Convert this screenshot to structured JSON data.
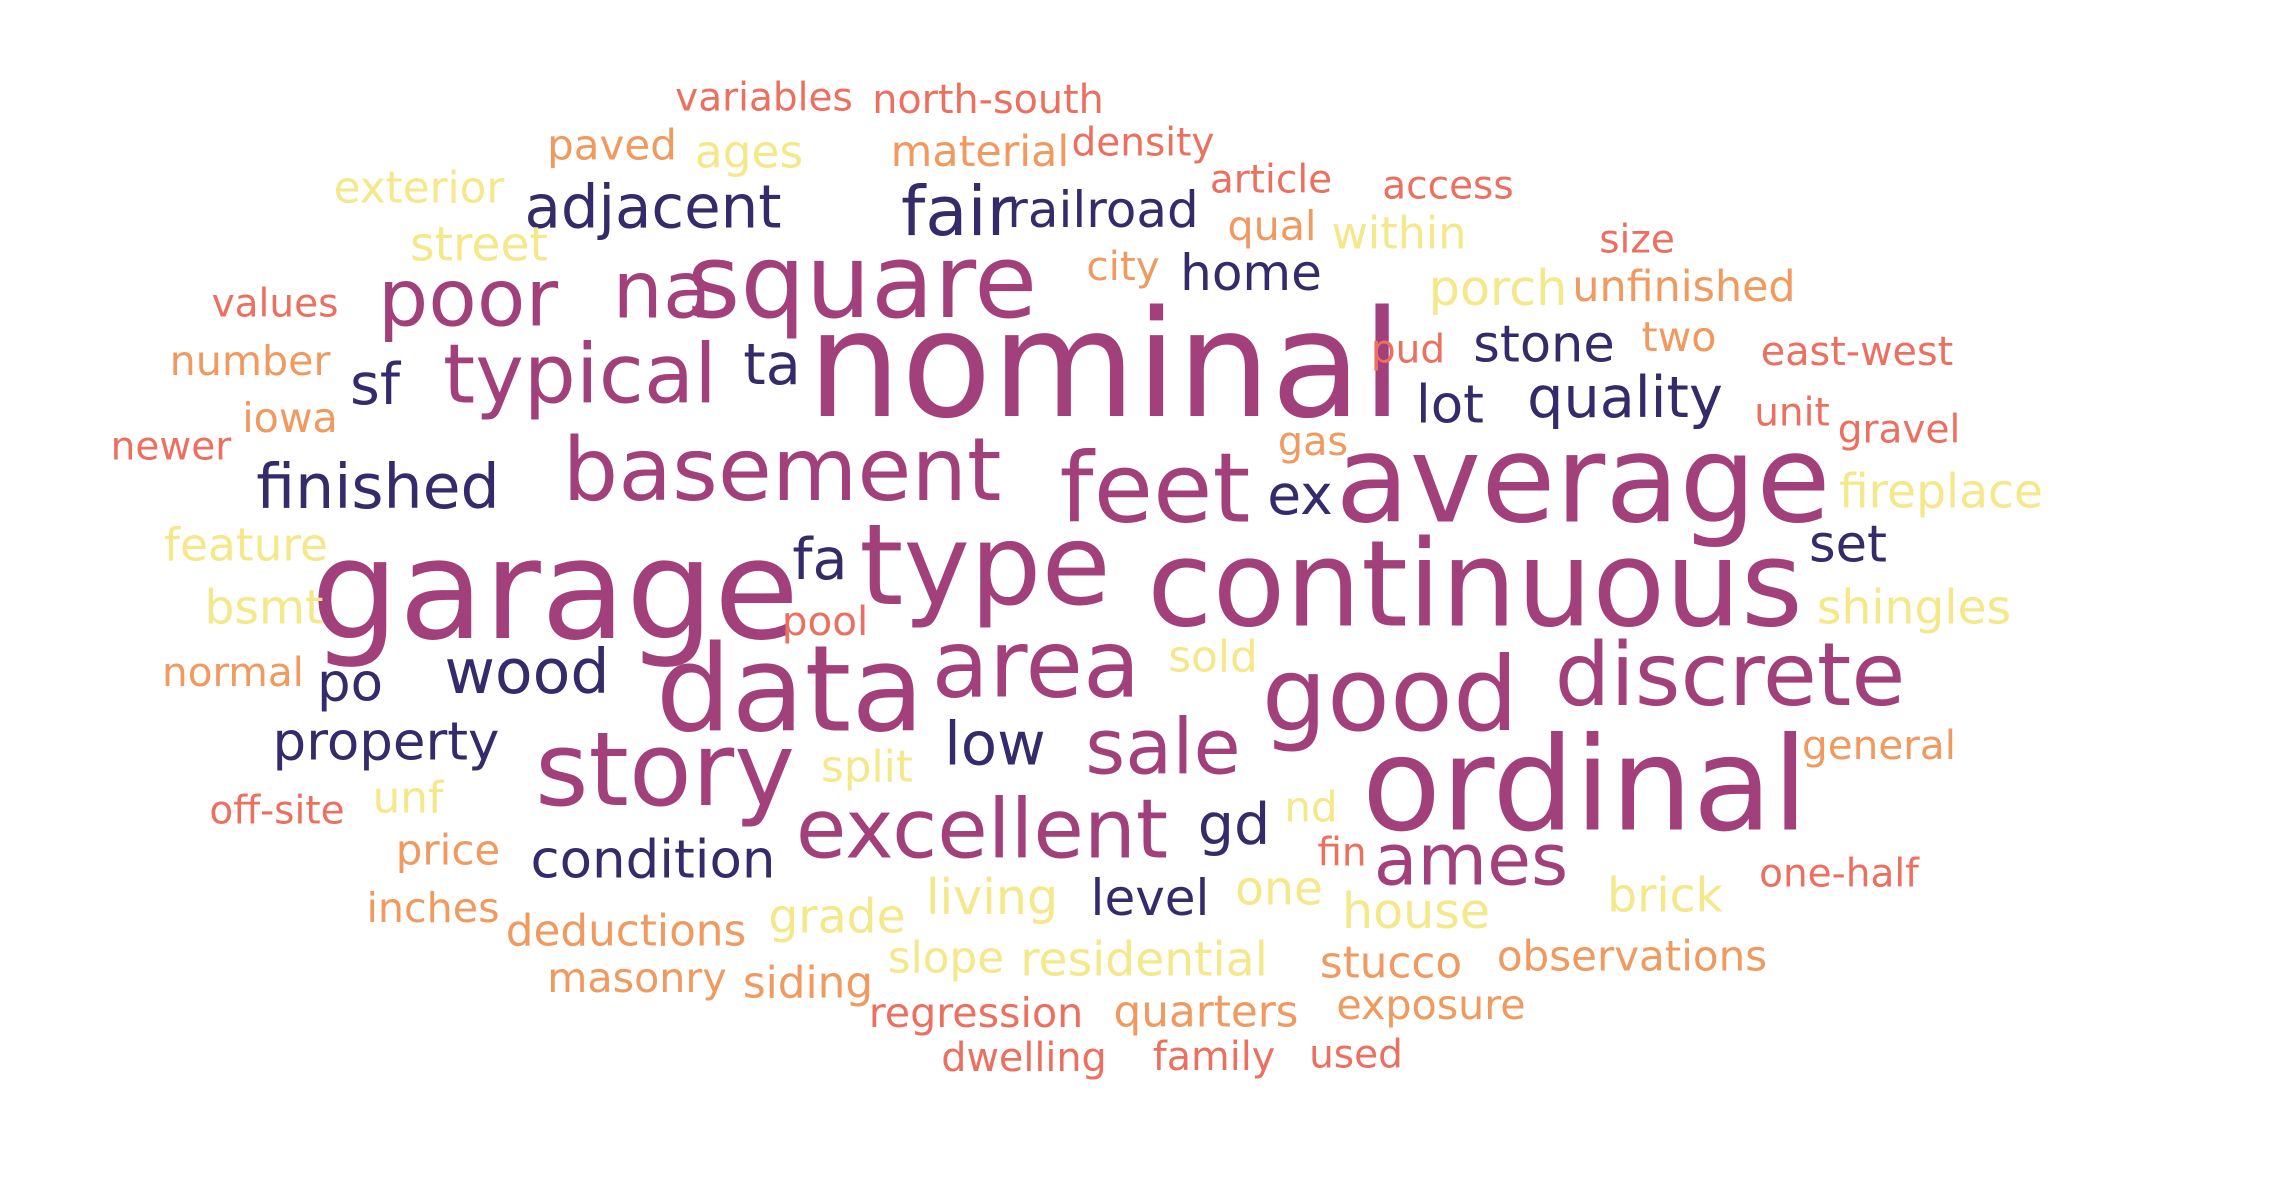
{
  "palette": {
    "c1": "#352a6a",
    "c2": "#a2407c",
    "c3": "#f4e88a",
    "c4": "#f09a60",
    "c5": "#ec7060"
  },
  "words": [
    {
      "text": "nominal",
      "color": "c2",
      "weight": 1.0
    },
    {
      "text": "garage",
      "color": "c2",
      "weight": 0.95
    },
    {
      "text": "average",
      "color": "c2",
      "weight": 0.85
    },
    {
      "text": "continuous",
      "color": "c2",
      "weight": 0.84
    },
    {
      "text": "ordinal",
      "color": "c2",
      "weight": 0.9
    },
    {
      "text": "data",
      "color": "c2",
      "weight": 0.84
    },
    {
      "text": "type",
      "color": "c2",
      "weight": 0.8
    },
    {
      "text": "square",
      "color": "c2",
      "weight": 0.74
    },
    {
      "text": "story",
      "color": "c2",
      "weight": 0.74
    },
    {
      "text": "good",
      "color": "c2",
      "weight": 0.74
    },
    {
      "text": "feet",
      "color": "c2",
      "weight": 0.7
    },
    {
      "text": "area",
      "color": "c2",
      "weight": 0.68
    },
    {
      "text": "basement",
      "color": "c2",
      "weight": 0.64
    },
    {
      "text": "discrete",
      "color": "c2",
      "weight": 0.64
    },
    {
      "text": "typical",
      "color": "c2",
      "weight": 0.6
    },
    {
      "text": "excellent",
      "color": "c2",
      "weight": 0.6
    },
    {
      "text": "poor",
      "color": "c2",
      "weight": 0.58
    },
    {
      "text": "na",
      "color": "c2",
      "weight": 0.58
    },
    {
      "text": "sale",
      "color": "c2",
      "weight": 0.56
    },
    {
      "text": "ames",
      "color": "c2",
      "weight": 0.52
    },
    {
      "text": "fair",
      "color": "c1",
      "weight": 0.5
    },
    {
      "text": "adjacent",
      "color": "c1",
      "weight": 0.42
    },
    {
      "text": "finished",
      "color": "c1",
      "weight": 0.44
    },
    {
      "text": "wood",
      "color": "c1",
      "weight": 0.44
    },
    {
      "text": "quality",
      "color": "c1",
      "weight": 0.4
    },
    {
      "text": "low",
      "color": "c1",
      "weight": 0.42
    },
    {
      "text": "condition",
      "color": "c1",
      "weight": 0.36
    },
    {
      "text": "property",
      "color": "c1",
      "weight": 0.36
    },
    {
      "text": "gd",
      "color": "c1",
      "weight": 0.4
    },
    {
      "text": "ta",
      "color": "c1",
      "weight": 0.4
    },
    {
      "text": "sf",
      "color": "c1",
      "weight": 0.4
    },
    {
      "text": "fa",
      "color": "c1",
      "weight": 0.4
    },
    {
      "text": "ex",
      "color": "c1",
      "weight": 0.38
    },
    {
      "text": "po",
      "color": "c1",
      "weight": 0.36
    },
    {
      "text": "home",
      "color": "c1",
      "weight": 0.33
    },
    {
      "text": "railroad",
      "color": "c1",
      "weight": 0.33
    },
    {
      "text": "stone",
      "color": "c1",
      "weight": 0.34
    },
    {
      "text": "lot",
      "color": "c1",
      "weight": 0.36
    },
    {
      "text": "set",
      "color": "c1",
      "weight": 0.34
    },
    {
      "text": "level",
      "color": "c1",
      "weight": 0.33
    },
    {
      "text": "porch",
      "color": "c3",
      "weight": 0.32
    },
    {
      "text": "street",
      "color": "c3",
      "weight": 0.3
    },
    {
      "text": "ages",
      "color": "c3",
      "weight": 0.28
    },
    {
      "text": "exterior",
      "color": "c3",
      "weight": 0.26
    },
    {
      "text": "within",
      "color": "c3",
      "weight": 0.27
    },
    {
      "text": "fireplace",
      "color": "c3",
      "weight": 0.3
    },
    {
      "text": "feature",
      "color": "c3",
      "weight": 0.28
    },
    {
      "text": "bsmt",
      "color": "c3",
      "weight": 0.3
    },
    {
      "text": "shingles",
      "color": "c3",
      "weight": 0.3
    },
    {
      "text": "sold",
      "color": "c3",
      "weight": 0.26
    },
    {
      "text": "split",
      "color": "c3",
      "weight": 0.26
    },
    {
      "text": "unf",
      "color": "c3",
      "weight": 0.26
    },
    {
      "text": "nd",
      "color": "c3",
      "weight": 0.24
    },
    {
      "text": "living",
      "color": "c3",
      "weight": 0.32
    },
    {
      "text": "one",
      "color": "c3",
      "weight": 0.3
    },
    {
      "text": "house",
      "color": "c3",
      "weight": 0.32
    },
    {
      "text": "brick",
      "color": "c3",
      "weight": 0.3
    },
    {
      "text": "grade",
      "color": "c3",
      "weight": 0.3
    },
    {
      "text": "slope",
      "color": "c3",
      "weight": 0.26
    },
    {
      "text": "residential",
      "color": "c3",
      "weight": 0.3
    },
    {
      "text": "paved",
      "color": "c4",
      "weight": 0.24
    },
    {
      "text": "material",
      "color": "c4",
      "weight": 0.25
    },
    {
      "text": "qual",
      "color": "c4",
      "weight": 0.23
    },
    {
      "text": "city",
      "color": "c4",
      "weight": 0.22
    },
    {
      "text": "unfinished",
      "color": "c4",
      "weight": 0.25
    },
    {
      "text": "two",
      "color": "c4",
      "weight": 0.23
    },
    {
      "text": "number",
      "color": "c4",
      "weight": 0.23
    },
    {
      "text": "iowa",
      "color": "c4",
      "weight": 0.23
    },
    {
      "text": "gas",
      "color": "c4",
      "weight": 0.21
    },
    {
      "text": "normal",
      "color": "c4",
      "weight": 0.22
    },
    {
      "text": "general",
      "color": "c4",
      "weight": 0.22
    },
    {
      "text": "price",
      "color": "c4",
      "weight": 0.24
    },
    {
      "text": "inches",
      "color": "c4",
      "weight": 0.23
    },
    {
      "text": "deductions",
      "color": "c4",
      "weight": 0.26
    },
    {
      "text": "masonry",
      "color": "c4",
      "weight": 0.23
    },
    {
      "text": "siding",
      "color": "c4",
      "weight": 0.26
    },
    {
      "text": "stucco",
      "color": "c4",
      "weight": 0.26
    },
    {
      "text": "observations",
      "color": "c4",
      "weight": 0.24
    },
    {
      "text": "quarters",
      "color": "c4",
      "weight": 0.26
    },
    {
      "text": "exposure",
      "color": "c4",
      "weight": 0.23
    },
    {
      "text": "variables",
      "color": "c5",
      "weight": 0.2
    },
    {
      "text": "north-south",
      "color": "c5",
      "weight": 0.21
    },
    {
      "text": "density",
      "color": "c5",
      "weight": 0.2
    },
    {
      "text": "article",
      "color": "c5",
      "weight": 0.2
    },
    {
      "text": "access",
      "color": "c5",
      "weight": 0.2
    },
    {
      "text": "size",
      "color": "c5",
      "weight": 0.2
    },
    {
      "text": "values",
      "color": "c5",
      "weight": 0.2
    },
    {
      "text": "pud",
      "color": "c5",
      "weight": 0.2
    },
    {
      "text": "east-west",
      "color": "c5",
      "weight": 0.21
    },
    {
      "text": "unit",
      "color": "c5",
      "weight": 0.2
    },
    {
      "text": "newer",
      "color": "c5",
      "weight": 0.2
    },
    {
      "text": "gravel",
      "color": "c5",
      "weight": 0.2
    },
    {
      "text": "pool",
      "color": "c5",
      "weight": 0.22
    },
    {
      "text": "off-site",
      "color": "c5",
      "weight": 0.2
    },
    {
      "text": "fin",
      "color": "c5",
      "weight": 0.2
    },
    {
      "text": "one-half",
      "color": "c5",
      "weight": 0.2
    },
    {
      "text": "regression",
      "color": "c5",
      "weight": 0.23
    },
    {
      "text": "dwelling",
      "color": "c5",
      "weight": 0.21
    },
    {
      "text": "family",
      "color": "c5",
      "weight": 0.21
    },
    {
      "text": "used",
      "color": "c5",
      "weight": 0.2
    }
  ]
}
